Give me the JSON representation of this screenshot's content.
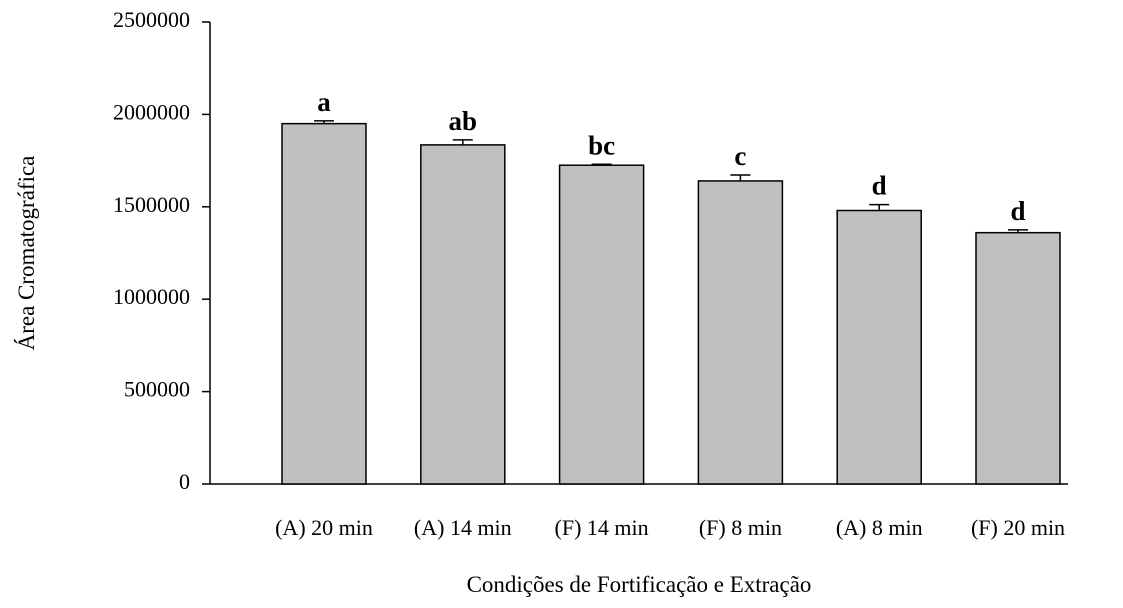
{
  "chart_data": {
    "type": "bar",
    "categories": [
      "(A) 20 min",
      "(A) 14 min",
      "(F) 14 min",
      "(F) 8 min",
      "(A) 8 min",
      "(F) 20 min"
    ],
    "values": [
      1950000,
      1835000,
      1725000,
      1640000,
      1480000,
      1360000
    ],
    "errors": [
      15000,
      27000,
      5000,
      32000,
      32000,
      15000
    ],
    "group_labels": [
      "a",
      "ab",
      "bc",
      "c",
      "d",
      "d"
    ],
    "color": "#c0c0c0",
    "ylim": [
      0,
      2500000
    ],
    "yticks": [
      0,
      500000,
      1000000,
      1500000,
      2000000,
      2500000
    ],
    "x_label": "Condições de Fortificação e Extração",
    "y_label": "Área Cromatográfica"
  }
}
